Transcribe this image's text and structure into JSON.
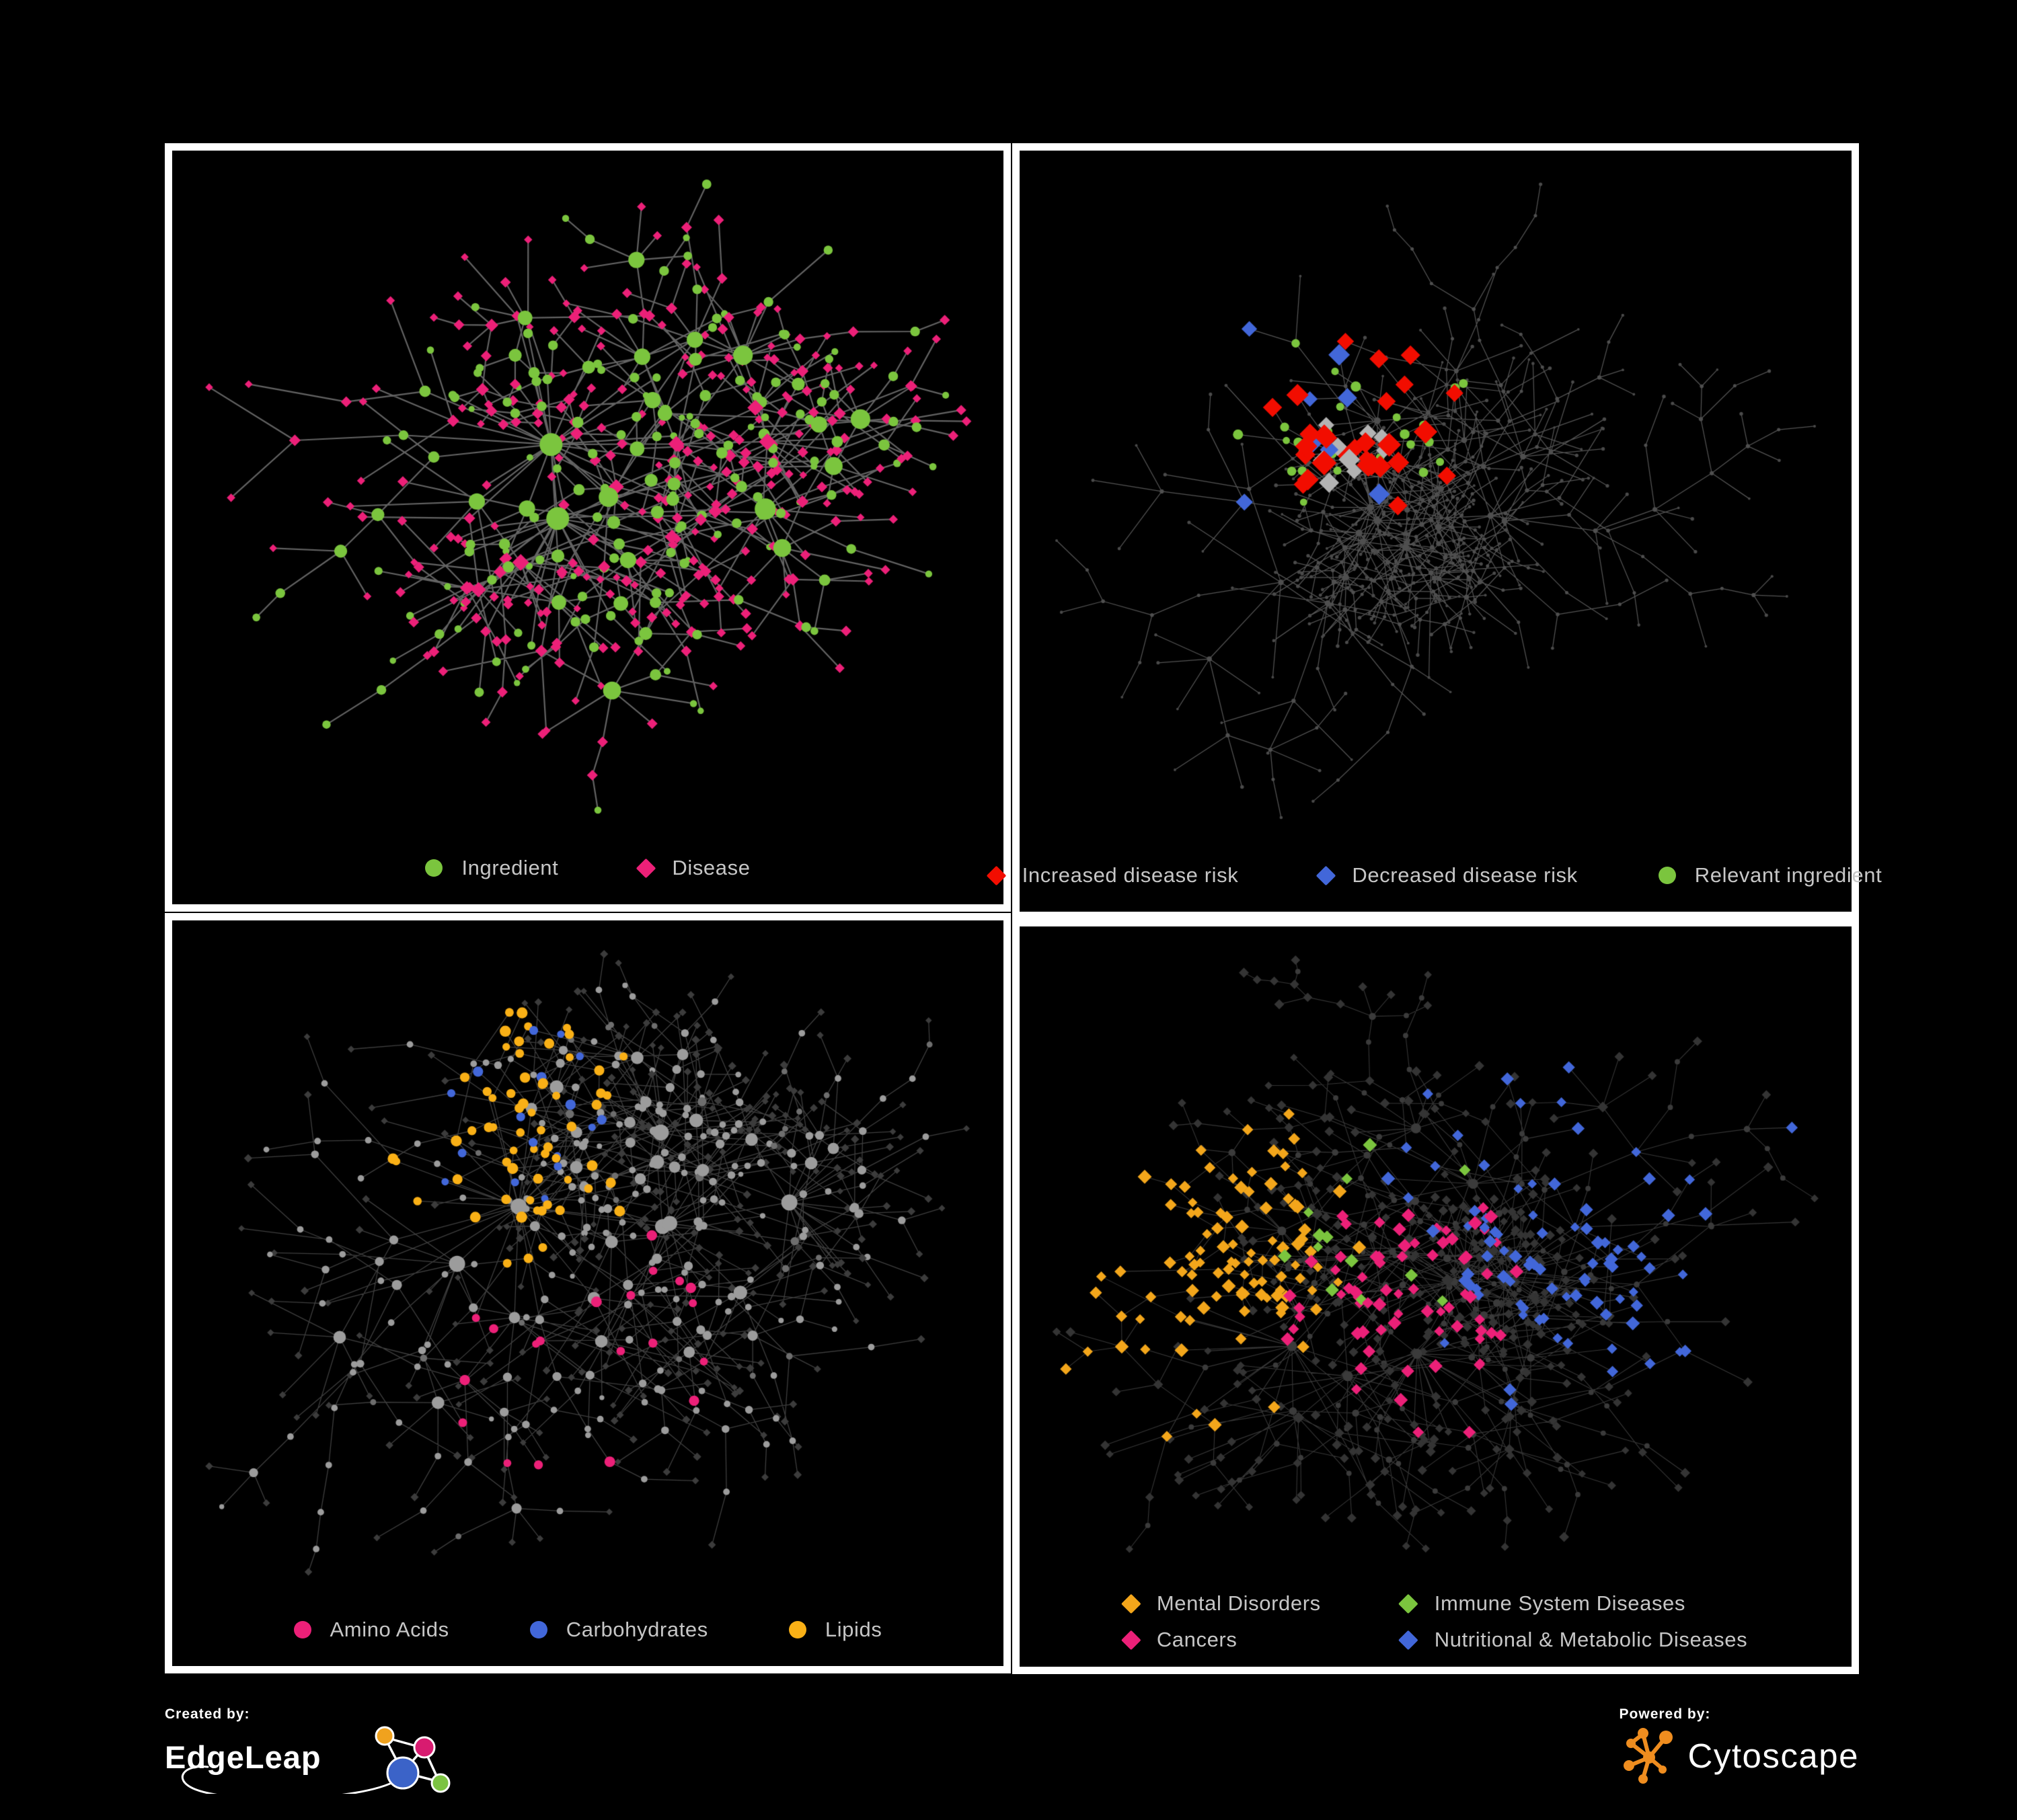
{
  "page": {
    "background": "#000000",
    "panel_frame_color": "#ffffff"
  },
  "branding": {
    "created_by_label": "Created by:",
    "created_by_name": "EdgeLeap",
    "powered_by_label": "Powered by:",
    "powered_by_name": "Cytoscape",
    "edgeleap_logo_colors": [
      "#F0A21E",
      "#D81B70",
      "#3B63C8",
      "#7CC342"
    ],
    "cytoscape_logo_color": "#EF8D1F"
  },
  "colors": {
    "green": "#7BC53E",
    "pink": "#EC2078",
    "red": "#F20D00",
    "blue": "#4267D9",
    "orange": "#F9B016",
    "amber": "#F3A61B",
    "silver": "#B3B3B3",
    "legend_text": "#C6C6C6"
  },
  "panels": [
    {
      "id": "ingredient-disease-network",
      "legend_layout": "row",
      "legend": [
        {
          "label": "Ingredient",
          "shape": "circle",
          "color": "#7BC53E"
        },
        {
          "label": "Disease",
          "shape": "diamond",
          "color": "#EC2078"
        }
      ],
      "network": {
        "seed": 11,
        "nodes": 520,
        "chain_prob": 0.14,
        "uniform_prob": 0.3,
        "len0": 150,
        "len_decay": 0.8,
        "bottom_pad": 140,
        "edge_color": "#686868",
        "edge_width": 2.2,
        "edge_opacity": 0.95,
        "hub_style": {
          "shape": "circle",
          "color": "#7BC53E",
          "min": 6,
          "max": 17
        },
        "leaf_style": {
          "shape": "diamond",
          "color": "#EC2078",
          "min": 4.5,
          "max": 6.5
        },
        "hub_alt": {
          "prob": 0.45,
          "shape": "diamond",
          "color": "#EC2078",
          "min": 6,
          "max": 10
        },
        "leaf_alt": {
          "prob": 0.22,
          "shape": "circle",
          "color": "#7BC53E",
          "min": 4.5,
          "max": 7
        },
        "categories": []
      }
    },
    {
      "id": "disease-risk-network",
      "legend_layout": "row",
      "legend": [
        {
          "label": "Increased disease risk",
          "shape": "diamond",
          "color": "#F20D00"
        },
        {
          "label": "Decreased disease risk",
          "shape": "diamond",
          "color": "#4267D9"
        },
        {
          "label": "Relevant ingredient",
          "shape": "circle",
          "color": "#7BC53E"
        }
      ],
      "network": {
        "seed": 23,
        "nodes": 680,
        "chain_prob": 0.16,
        "uniform_prob": 0.32,
        "len0": 150,
        "len_decay": 0.8,
        "bottom_pad": 140,
        "edge_color": "#5d5d5d",
        "edge_width": 1.25,
        "edge_opacity": 0.9,
        "hub_style": {
          "shape": "circle",
          "color": "#4f4f4f",
          "min": 2.2,
          "max": 5
        },
        "leaf_style": {
          "shape": "circle",
          "color": "#4a4a4a",
          "min": 1.8,
          "max": 2.8
        },
        "categories": [
          {
            "name": "increased-disease-risk",
            "shape": "diamond",
            "color": "#F20D00",
            "size": 12.5,
            "count": 28,
            "focal": [
              0.42,
              0.32
            ],
            "spread": 0.3
          },
          {
            "name": "uncertain-risk",
            "shape": "diamond",
            "color": "#B3B3B3",
            "size": 11,
            "count": 9,
            "focal": [
              0.4,
              0.4
            ],
            "spread": 0.28
          },
          {
            "name": "decreased-disease-risk",
            "shape": "diamond",
            "color": "#4267D9",
            "size": 11,
            "count": 9,
            "focal": [
              0.3,
              0.3
            ],
            "spread": 0.6
          },
          {
            "name": "relevant-ingredient",
            "shape": "circle",
            "color": "#7BC53E",
            "size": 6.5,
            "count": 27,
            "focal": [
              0.35,
              0.3
            ],
            "spread": 0.45
          }
        ]
      }
    },
    {
      "id": "nutrient-class-network",
      "legend_layout": "row",
      "legend": [
        {
          "label": "Amino Acids",
          "shape": "circle",
          "color": "#EC2078"
        },
        {
          "label": "Carbohydrates",
          "shape": "circle",
          "color": "#4267D9"
        },
        {
          "label": "Lipids",
          "shape": "circle",
          "color": "#F9B016"
        }
      ],
      "network": {
        "seed": 37,
        "nodes": 720,
        "chain_prob": 0.15,
        "uniform_prob": 0.3,
        "len0": 150,
        "len_decay": 0.8,
        "bottom_pad": 140,
        "edge_color": "#8b8b8b",
        "edge_width": 1.3,
        "edge_opacity": 0.45,
        "hub_style": {
          "shape": "circle",
          "color": "#9c9c9c",
          "min": 4,
          "max": 12
        },
        "leaf_style": {
          "shape": "diamond",
          "color": "#3c3c3c",
          "min": 3.8,
          "max": 5
        },
        "hub_alt": {
          "prob": 0.12,
          "shape": "circle",
          "color": "#6e6e6e",
          "min": 4,
          "max": 8
        },
        "leaf_alt": {
          "prob": 0.06,
          "shape": "circle",
          "color": "#9c9c9c",
          "min": 3.5,
          "max": 5
        },
        "categories": [
          {
            "name": "lipids",
            "shape": "circle",
            "color": "#F9B016",
            "size": 7,
            "count": 62,
            "focal": [
              0.4,
              0.27
            ],
            "spread": 0.33
          },
          {
            "name": "carbohydrates",
            "shape": "circle",
            "color": "#4267D9",
            "size": 6.5,
            "count": 17,
            "focal": [
              0.4,
              0.26
            ],
            "spread": 0.5
          },
          {
            "name": "amino-acids",
            "shape": "circle",
            "color": "#EC2078",
            "size": 7,
            "count": 20,
            "focal": [
              0.48,
              0.6
            ],
            "spread": 1.0
          }
        ]
      }
    },
    {
      "id": "disease-category-network",
      "legend_layout": "grid2",
      "legend": [
        {
          "label": "Mental Disorders",
          "shape": "diamond",
          "color": "#F3A61B"
        },
        {
          "label": "Cancers",
          "shape": "diamond",
          "color": "#EC2078"
        },
        {
          "label": "Immune System Diseases",
          "shape": "diamond",
          "color": "#7BC53E"
        },
        {
          "label": "Nutritional & Metabolic Diseases",
          "shape": "diamond",
          "color": "#4267D9"
        }
      ],
      "network": {
        "seed": 51,
        "nodes": 820,
        "chain_prob": 0.15,
        "uniform_prob": 0.3,
        "len0": 150,
        "len_decay": 0.8,
        "bottom_pad": 175,
        "edge_color": "#7a7a7a",
        "edge_width": 1.1,
        "edge_opacity": 0.45,
        "hub_style": {
          "shape": "circle",
          "color": "#3b3b3b",
          "min": 3.5,
          "max": 7.5
        },
        "leaf_style": {
          "shape": "diamond",
          "color": "#343434",
          "min": 4.5,
          "max": 6
        },
        "hub_alt": {
          "prob": 0.3,
          "shape": "diamond",
          "color": "#343434",
          "min": 5,
          "max": 7.5
        },
        "categories": [
          {
            "name": "mental-disorders",
            "shape": "diamond",
            "color": "#F3A61B",
            "size": 7,
            "count": 100,
            "focal": [
              0.16,
              0.44
            ],
            "spread": 0.2
          },
          {
            "name": "cancers",
            "shape": "diamond",
            "color": "#EC2078",
            "size": 7,
            "count": 72,
            "focal": [
              0.46,
              0.52
            ],
            "spread": 0.3
          },
          {
            "name": "immune-system-diseases",
            "shape": "diamond",
            "color": "#7BC53E",
            "size": 7,
            "count": 13,
            "focal": [
              0.42,
              0.4
            ],
            "spread": 0.55
          },
          {
            "name": "nutritional-metabolic-diseases",
            "shape": "diamond",
            "color": "#4267D9",
            "size": 7,
            "count": 85,
            "focal": [
              0.74,
              0.4
            ],
            "spread": 0.6
          }
        ]
      }
    }
  ]
}
